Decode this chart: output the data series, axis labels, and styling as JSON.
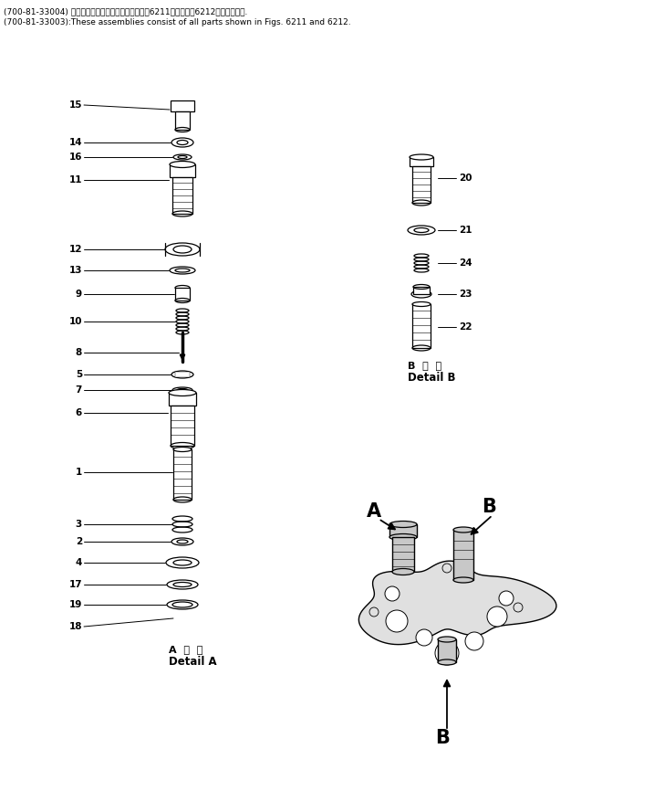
{
  "fig_width": 7.17,
  "fig_height": 8.89,
  "dpi": 100,
  "bg_color": "#ffffff",
  "line_color": "#000000",
  "header_line1": "(700-81-33004) これらのアセンブリの構成部品はㅢ6211図およびㅢ6212図を含みます.",
  "header_line2": "(700-81-33003):These assemblies consist of all parts shown in Figs. 6211 and 6212.",
  "detail_a_label": "A  詳  細",
  "detail_a_label2": "Detail A",
  "detail_b_label": "B  詳  細",
  "detail_b_label2": "Detail B"
}
